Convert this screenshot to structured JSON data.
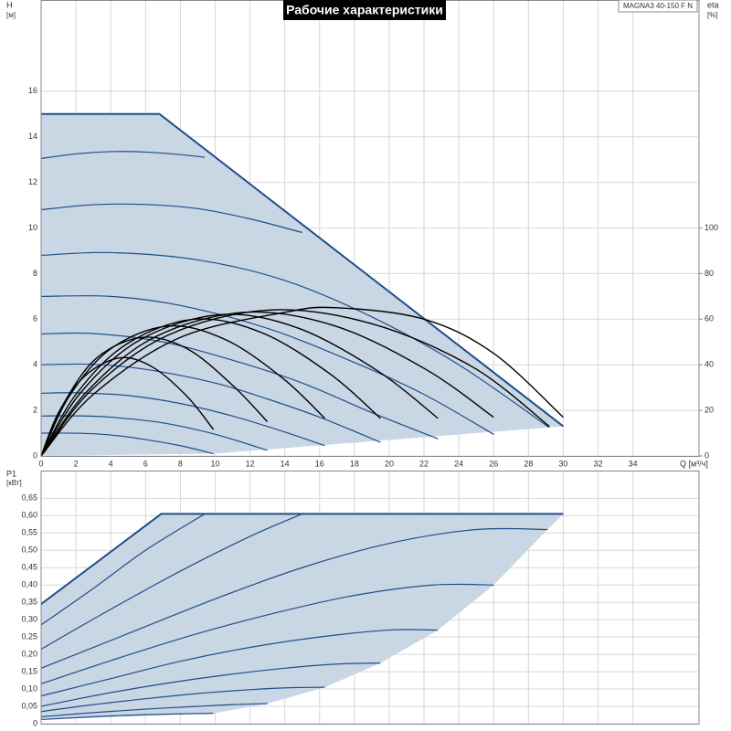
{
  "chart_data": [
    {
      "type": "line",
      "title": "Рабочие характеристики",
      "model": "MAGNA3 40-150 F N",
      "ylabel": [
        "H",
        "[м]"
      ],
      "y2label": [
        "eta",
        "[%]"
      ],
      "xlabel": "Q [м³/ч]",
      "xlim": [
        0,
        37.8
      ],
      "xticks": [
        0,
        2,
        4,
        6,
        8,
        10,
        12,
        14,
        16,
        18,
        20,
        22,
        24,
        26,
        28,
        30,
        32,
        34
      ],
      "ylim": [
        0,
        20
      ],
      "yticks": [
        0,
        2,
        4,
        6,
        8,
        10,
        12,
        14,
        16
      ],
      "y2lim": [
        0,
        200
      ],
      "y2ticks": [
        0,
        20,
        40,
        60,
        80,
        100
      ],
      "grid": true,
      "areas": [
        {
          "color": "#c9d6e4",
          "x": [
            0,
            6.8,
            30,
            9.9,
            0
          ],
          "values": [
            15,
            15,
            1.3,
            0.1,
            0
          ]
        }
      ],
      "series": [
        {
          "color": "#1f4e8c",
          "x": [
            0,
            6.8,
            30
          ],
          "values": [
            15,
            15,
            1.3
          ]
        },
        {
          "color": "#1f4e8c",
          "x": [
            0,
            2,
            4,
            6,
            8,
            9.4
          ],
          "values": [
            13.05,
            13.25,
            13.35,
            13.33,
            13.22,
            13.1
          ]
        },
        {
          "color": "#1f4e8c",
          "x": [
            0,
            3,
            6,
            9,
            12,
            15
          ],
          "values": [
            10.8,
            11.02,
            11.03,
            10.85,
            10.4,
            9.8
          ]
        },
        {
          "color": "#1f4e8c",
          "x": [
            0,
            4,
            9,
            14,
            19,
            24,
            29.2
          ],
          "values": [
            8.8,
            8.92,
            8.6,
            7.7,
            6.1,
            4.0,
            1.25
          ]
        },
        {
          "color": "#1f4e8c",
          "x": [
            0,
            4,
            8,
            13,
            18,
            22,
            26
          ],
          "values": [
            7.0,
            7.0,
            6.6,
            5.6,
            4.1,
            2.7,
            0.95
          ]
        },
        {
          "color": "#1f4e8c",
          "x": [
            0,
            3,
            7,
            11,
            15,
            19,
            22.8
          ],
          "values": [
            5.35,
            5.37,
            5.0,
            4.2,
            3.2,
            1.9,
            0.75
          ]
        },
        {
          "color": "#1f4e8c",
          "x": [
            0,
            3,
            6,
            10,
            13,
            16,
            19.5
          ],
          "values": [
            4.0,
            4.02,
            3.8,
            3.2,
            2.5,
            1.7,
            0.6
          ]
        },
        {
          "color": "#1f4e8c",
          "x": [
            0,
            2,
            5,
            8,
            11,
            14,
            16.3
          ],
          "values": [
            2.75,
            2.77,
            2.65,
            2.3,
            1.75,
            1.05,
            0.45
          ]
        },
        {
          "color": "#1f4e8c",
          "x": [
            0,
            2,
            4,
            7,
            10,
            13
          ],
          "values": [
            1.75,
            1.76,
            1.7,
            1.45,
            0.95,
            0.25
          ]
        },
        {
          "color": "#1f4e8c",
          "x": [
            0,
            2,
            4,
            6,
            8,
            9.9
          ],
          "values": [
            1.0,
            1.0,
            0.92,
            0.72,
            0.45,
            0.1
          ]
        },
        {
          "color": "#000000",
          "axis": "y2",
          "x": [
            0,
            1,
            2.5,
            4.5,
            6.4,
            8.4,
            9.9
          ],
          "values": [
            0,
            19,
            35,
            43,
            39,
            26,
            11.6
          ]
        },
        {
          "color": "#000000",
          "axis": "y2",
          "x": [
            0,
            1.3,
            3.2,
            5.8,
            8.4,
            11,
            13
          ],
          "values": [
            0,
            23,
            43,
            52,
            47,
            31,
            15
          ]
        },
        {
          "color": "#000000",
          "axis": "y2",
          "x": [
            0,
            1.6,
            4,
            7.3,
            10.6,
            13.9,
            16.3
          ],
          "values": [
            0,
            26,
            47,
            57,
            51,
            34,
            16.5
          ]
        },
        {
          "color": "#000000",
          "axis": "y2",
          "x": [
            0,
            2,
            4.9,
            8.8,
            12.7,
            16.6,
            19.5
          ],
          "values": [
            0,
            27,
            49,
            60,
            54,
            36,
            16.5
          ]
        },
        {
          "color": "#000000",
          "axis": "y2",
          "x": [
            0,
            2.3,
            5.7,
            10.3,
            14.8,
            19.4,
            22.8
          ],
          "values": [
            0,
            28,
            51,
            62,
            56,
            37,
            16.5
          ]
        },
        {
          "color": "#000000",
          "axis": "y2",
          "x": [
            0,
            2.6,
            6.5,
            11.7,
            16.9,
            22.1,
            26
          ],
          "values": [
            0,
            28,
            52,
            63,
            57,
            38,
            17
          ]
        },
        {
          "color": "#000000",
          "axis": "y2",
          "x": [
            0,
            2.9,
            7.3,
            13.1,
            19,
            24.8,
            29.2
          ],
          "values": [
            0,
            29,
            53,
            64,
            58,
            39,
            13
          ]
        },
        {
          "color": "#000000",
          "axis": "y2",
          "x": [
            0,
            3,
            8,
            14,
            17,
            22,
            26,
            30
          ],
          "values": [
            0,
            27,
            52,
            63,
            65,
            60,
            45,
            17
          ]
        }
      ]
    },
    {
      "type": "line",
      "ylabel": [
        "P1",
        "[кВт]"
      ],
      "xlim": [
        0,
        37.8
      ],
      "xticks": [
        0,
        2,
        4,
        6,
        8,
        10,
        12,
        14,
        16,
        18,
        20,
        22,
        24,
        26,
        28,
        30,
        32,
        34
      ],
      "ylim": [
        0,
        0.73
      ],
      "yticks": [
        0,
        {
          "value": 0.05,
          "label": "0,05"
        },
        {
          "value": 0.1,
          "label": "0,10"
        },
        {
          "value": 0.15,
          "label": "0,15"
        },
        {
          "value": 0.2,
          "label": "0,20"
        },
        {
          "value": 0.25,
          "label": "0,25"
        },
        {
          "value": 0.3,
          "label": "0,30"
        },
        {
          "value": 0.35,
          "label": "0,35"
        },
        {
          "value": 0.4,
          "label": "0,40"
        },
        {
          "value": 0.45,
          "label": "0,45"
        },
        {
          "value": 0.5,
          "label": "0,50"
        },
        {
          "value": 0.55,
          "label": "0,55"
        },
        {
          "value": 0.6,
          "label": "0,60"
        },
        {
          "value": 0.65,
          "label": "0,65"
        }
      ],
      "grid": true,
      "areas": [
        {
          "color": "#c9d6e4",
          "x": [
            0,
            6.9,
            30,
            29.1,
            26,
            22.8,
            19.5,
            16.3,
            13,
            9.9,
            0
          ],
          "values": [
            0.345,
            0.605,
            0.605,
            0.56,
            0.4,
            0.27,
            0.175,
            0.105,
            0.058,
            0.03,
            0.012
          ]
        }
      ],
      "series": [
        {
          "color": "#1f4e8c",
          "x": [
            0,
            6.9,
            30
          ],
          "values": [
            0.345,
            0.605,
            0.605
          ]
        },
        {
          "color": "#1f4e8c",
          "x": [
            0,
            3,
            6,
            9.4
          ],
          "values": [
            0.285,
            0.39,
            0.5,
            0.605
          ]
        },
        {
          "color": "#1f4e8c",
          "x": [
            0,
            4,
            8,
            12,
            15
          ],
          "values": [
            0.215,
            0.33,
            0.44,
            0.54,
            0.605
          ]
        },
        {
          "color": "#1f4e8c",
          "x": [
            0,
            5,
            10,
            15,
            20,
            25,
            29.1
          ],
          "values": [
            0.16,
            0.26,
            0.36,
            0.45,
            0.52,
            0.56,
            0.56
          ]
        },
        {
          "color": "#1f4e8c",
          "x": [
            0,
            4.5,
            9,
            13.5,
            18,
            22.5,
            26
          ],
          "values": [
            0.115,
            0.19,
            0.26,
            0.32,
            0.37,
            0.4,
            0.4
          ]
        },
        {
          "color": "#1f4e8c",
          "x": [
            0,
            4,
            8,
            12,
            16,
            20,
            22.8
          ],
          "values": [
            0.08,
            0.13,
            0.18,
            0.22,
            0.25,
            0.27,
            0.27
          ]
        },
        {
          "color": "#1f4e8c",
          "x": [
            0,
            3.5,
            7,
            10.5,
            14,
            17,
            19.5
          ],
          "values": [
            0.05,
            0.085,
            0.115,
            0.14,
            0.16,
            0.172,
            0.175
          ]
        },
        {
          "color": "#1f4e8c",
          "x": [
            0,
            3,
            6,
            9,
            12,
            14.5,
            16.3
          ],
          "values": [
            0.035,
            0.055,
            0.072,
            0.087,
            0.098,
            0.104,
            0.105
          ]
        },
        {
          "color": "#1f4e8c",
          "x": [
            0,
            3,
            6,
            9,
            11,
            13
          ],
          "values": [
            0.02,
            0.032,
            0.042,
            0.05,
            0.055,
            0.058
          ]
        },
        {
          "color": "#1f4e8c",
          "x": [
            0,
            3,
            6,
            9.9
          ],
          "values": [
            0.012,
            0.02,
            0.026,
            0.03
          ]
        }
      ]
    }
  ]
}
